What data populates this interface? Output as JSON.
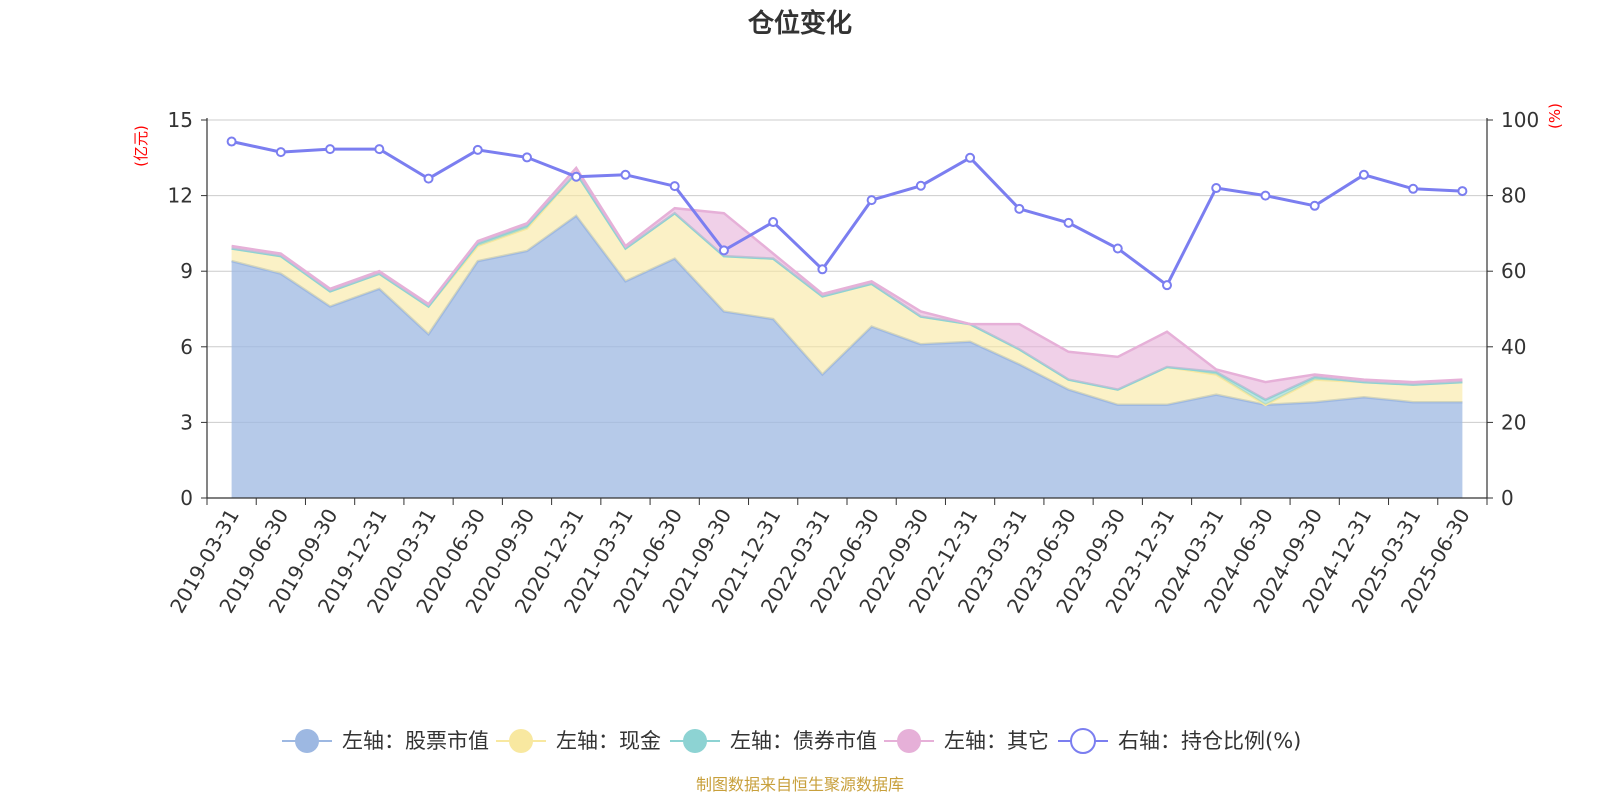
{
  "source_note": "制图数据来自恒生聚源数据库",
  "colors": {
    "stock": "#9db8e2",
    "cash": "#f8e8a0",
    "bond": "#8dd3d3",
    "other": "#e6b0d8",
    "ratio": "#7b7ef0",
    "grid": "#cccccc",
    "axis": "#333333",
    "unit": "#ff0000",
    "source": "#c8a03c"
  },
  "chart_data": {
    "type": "area",
    "title": "仓位变化",
    "left_axis": {
      "unit": "(亿元)",
      "min": 0,
      "max": 15,
      "ticks": [
        0,
        3,
        6,
        9,
        12,
        15
      ]
    },
    "right_axis": {
      "unit": "(%)",
      "min": 0,
      "max": 100,
      "ticks": [
        0,
        20,
        40,
        60,
        80,
        100
      ]
    },
    "grid": true,
    "legend_position": "bottom",
    "categories": [
      "2019-03-31",
      "2019-06-30",
      "2019-09-30",
      "2019-12-31",
      "2020-03-31",
      "2020-06-30",
      "2020-09-30",
      "2020-12-31",
      "2021-03-31",
      "2021-06-30",
      "2021-09-30",
      "2021-12-31",
      "2022-03-31",
      "2022-06-30",
      "2022-09-30",
      "2022-12-31",
      "2023-03-31",
      "2023-06-30",
      "2023-09-30",
      "2023-12-31",
      "2024-03-31",
      "2024-06-30",
      "2024-09-30",
      "2024-12-31",
      "2025-03-31",
      "2025-06-30"
    ],
    "series": [
      {
        "key": "stock",
        "name": "左轴：股票市值",
        "axis": "left",
        "kind": "stacked-area",
        "values": [
          9.4,
          8.9,
          7.6,
          8.3,
          6.5,
          9.4,
          9.8,
          11.2,
          8.6,
          9.5,
          7.4,
          7.1,
          4.9,
          6.8,
          6.1,
          6.2,
          5.3,
          4.3,
          3.7,
          3.7,
          4.1,
          3.7,
          3.8,
          4.0,
          3.8,
          3.8
        ]
      },
      {
        "key": "cash",
        "name": "左轴：现金",
        "axis": "left",
        "kind": "stacked-area",
        "values": [
          0.5,
          0.7,
          0.6,
          0.6,
          1.1,
          0.6,
          0.9,
          1.7,
          1.3,
          1.8,
          2.2,
          2.4,
          3.1,
          1.7,
          1.1,
          0.7,
          0.6,
          0.4,
          0.6,
          1.5,
          0.8,
          0.0,
          0.9,
          0.6,
          0.7,
          0.8
        ]
      },
      {
        "key": "bond",
        "name": "左轴：债券市值",
        "axis": "left",
        "kind": "stacked-area",
        "values": [
          0,
          0,
          0,
          0,
          0,
          0.1,
          0.1,
          0,
          0,
          0,
          0,
          0,
          0,
          0,
          0,
          0,
          0,
          0,
          0,
          0,
          0.1,
          0.2,
          0.1,
          0,
          0,
          0
        ]
      },
      {
        "key": "other",
        "name": "左轴：其它",
        "axis": "left",
        "kind": "stacked-area",
        "values": [
          0.1,
          0.1,
          0.1,
          0.1,
          0.1,
          0.1,
          0.1,
          0.2,
          0.1,
          0.2,
          1.7,
          0.2,
          0.1,
          0.1,
          0.2,
          0.0,
          1.0,
          1.1,
          1.3,
          1.4,
          0.1,
          0.7,
          0.1,
          0.1,
          0.1,
          0.1
        ]
      },
      {
        "key": "ratio",
        "name": "右轴：持仓比例(%)",
        "axis": "right",
        "kind": "line",
        "values": [
          94.3,
          91.5,
          92.3,
          92.3,
          84.5,
          92.1,
          90.1,
          85.0,
          85.5,
          82.5,
          65.5,
          73.0,
          60.5,
          78.8,
          82.6,
          90.0,
          76.5,
          72.8,
          66.0,
          56.3,
          82.0,
          80.0,
          77.3,
          85.5,
          81.8,
          81.2
        ]
      }
    ]
  }
}
